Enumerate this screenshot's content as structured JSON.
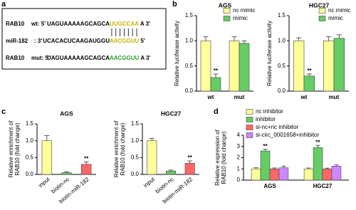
{
  "panel_labels": [
    "a",
    "b",
    "c",
    "d"
  ],
  "panel_a": {
    "rows": [
      {
        "name": "RAB10",
        "tag": "wt: 5'",
        "seq": "UAGUAAAAAGCAGCA",
        "site": "UUGCCAA",
        "end": "A 3'",
        "site_color": "#c9b400"
      },
      {
        "name": "miR-182",
        "tag": ": 3'",
        "seq": "UCACACUCAAGAUGGU",
        "site": "AACGGUU",
        "end": "5'",
        "site_color": "#c9b400"
      },
      {
        "name": "RAB10",
        "tag": "mut: 5'",
        "seq": "UAGUAAAAAGCAGCA",
        "site": "AACGGUU",
        "end": "A 3'",
        "site_color": "#2ca02c"
      }
    ]
  },
  "chart_data": [
    {
      "type": "bar",
      "title": "AGS",
      "ylabel": "Relative luciferase activity",
      "categories": [
        "wt",
        "mut"
      ],
      "legend": "upper right",
      "series": [
        {
          "name": "nc mimic",
          "color": "#ffff99",
          "values": [
            1.0,
            1.0
          ],
          "errors": [
            0.08,
            0.08
          ],
          "significance": [
            null,
            null
          ]
        },
        {
          "name": "mimic",
          "color": "#66cc66",
          "values": [
            0.27,
            0.95
          ],
          "errors": [
            0.07,
            0.05
          ],
          "significance": [
            "**",
            null
          ]
        }
      ],
      "ylim": [
        0,
        1.5
      ],
      "yticks": [
        {
          "value": 0,
          "label": "0.0"
        },
        0.5,
        {
          "value": 1,
          "label": "1.0"
        },
        1.5
      ]
    },
    {
      "type": "bar",
      "title": "HGC27",
      "ylabel": "Relative luciferase activity",
      "categories": [
        "wt",
        "mut"
      ],
      "legend": "upper right",
      "series": [
        {
          "name": "nc mimic",
          "color": "#ffff99",
          "values": [
            1.0,
            1.0
          ],
          "errors": [
            0.06,
            0.08
          ],
          "significance": [
            null,
            null
          ]
        },
        {
          "name": "mimic",
          "color": "#66cc66",
          "values": [
            0.3,
            1.05
          ],
          "errors": [
            0.04,
            0.07
          ],
          "significance": [
            "**",
            null
          ]
        }
      ],
      "ylim": [
        0,
        1.5
      ],
      "yticks": [
        {
          "value": 0,
          "label": "0.0"
        },
        0.5,
        {
          "value": 1,
          "label": "1.0"
        },
        1.5
      ]
    },
    {
      "type": "bar",
      "title": "AGS",
      "ylabel": [
        "Relative enrichment of",
        "RAB10 (fold change)"
      ],
      "categories": [
        "input",
        "biotin-nc",
        "biotin-miR-182"
      ],
      "values": [
        1.0,
        0.05,
        0.3
      ],
      "errors": [
        0.15,
        0.03,
        0.07
      ],
      "significance": [
        null,
        null,
        "**"
      ],
      "colors": [
        "#ffff99",
        "#66cc66",
        "#ff6666"
      ],
      "ylim": [
        0,
        1.5
      ],
      "yticks": [
        {
          "value": 0,
          "label": "0.0"
        },
        0.5,
        {
          "value": 1,
          "label": "1.0"
        },
        1.5
      ]
    },
    {
      "type": "bar",
      "title": "HGC27",
      "ylabel": [
        "Relative enrichment of",
        "RAB10 (fold change)"
      ],
      "categories": [
        "input",
        "biotin-nc",
        "biotin-miR-182"
      ],
      "values": [
        1.0,
        0.1,
        0.33
      ],
      "errors": [
        0.07,
        0.03,
        0.07
      ],
      "significance": [
        null,
        null,
        "**"
      ],
      "colors": [
        "#ffff99",
        "#66cc66",
        "#ff6666"
      ],
      "ylim": [
        0,
        1.5
      ],
      "yticks": [
        {
          "value": 0,
          "label": "0.0"
        },
        0.5,
        {
          "value": 1,
          "label": "1.0"
        },
        1.5
      ]
    },
    {
      "type": "bar",
      "ylabel": [
        "Relative expression of",
        "RAB10 (fold change)"
      ],
      "categories": [
        "AGS",
        "HGC27"
      ],
      "legend": "top",
      "series": [
        {
          "name": "nc inhibitor",
          "color": "#ffff99",
          "values": [
            1.0,
            1.0
          ],
          "errors": [
            0.1,
            0.08
          ],
          "significance": [
            null,
            null
          ]
        },
        {
          "name": "inhibitor",
          "color": "#66cc66",
          "values": [
            2.6,
            2.9
          ],
          "errors": [
            0.15,
            0.2
          ],
          "significance": [
            "**",
            "**"
          ]
        },
        {
          "name": "si-nc+nc inhibitor",
          "color": "#ff6666",
          "values": [
            1.0,
            1.0
          ],
          "errors": [
            0.08,
            0.07
          ],
          "significance": [
            null,
            null
          ]
        },
        {
          "name": "si-circ_0001658+inhibitor",
          "color": "#cc88ff",
          "values": [
            1.1,
            1.25
          ],
          "errors": [
            0.15,
            0.1
          ],
          "significance": [
            null,
            null
          ]
        }
      ],
      "ylim": [
        0,
        4
      ],
      "yticks": [
        0,
        1,
        2,
        3,
        4
      ]
    }
  ]
}
